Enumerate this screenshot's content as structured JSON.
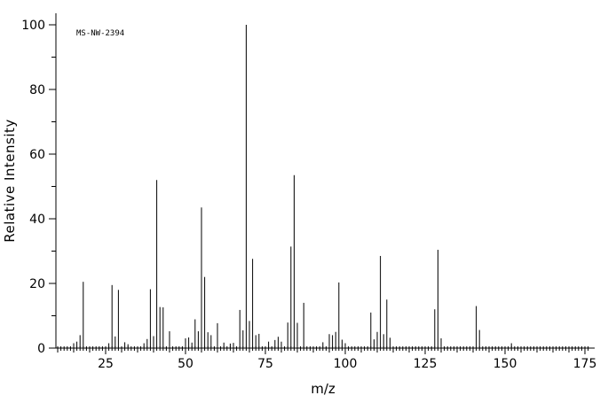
{
  "annotation": "MS-NW-2394",
  "chart_data": {
    "type": "bar",
    "title": "",
    "xlabel": "m/z",
    "ylabel": "Relative Intensity",
    "xlim": [
      9.4,
      176.5
    ],
    "ylim": [
      0,
      103.5
    ],
    "x_major_ticks": [
      25,
      50,
      75,
      100,
      125,
      150,
      175
    ],
    "x_medium_tick_step": 5,
    "x_minor_tick_step": 1,
    "y_major_ticks": [
      0,
      20,
      40,
      60,
      80,
      100
    ],
    "y_minor_tick_step": 10,
    "grid": false,
    "legend": "none",
    "bar_color": "#000000",
    "axis_color": "#000000",
    "background_color": "#ffffff",
    "peaks_format": "[m_over_z, relative_intensity_percent]",
    "peaks": [
      [
        15,
        1.5
      ],
      [
        16,
        2.0
      ],
      [
        17,
        4.0
      ],
      [
        18,
        20.5
      ],
      [
        26,
        1.5
      ],
      [
        27,
        19.5
      ],
      [
        28,
        3.6
      ],
      [
        29,
        18.0
      ],
      [
        31,
        1.8
      ],
      [
        32,
        1.2
      ],
      [
        37,
        1.5
      ],
      [
        38,
        2.8
      ],
      [
        39,
        18.2
      ],
      [
        40,
        3.7
      ],
      [
        41,
        52.0
      ],
      [
        42,
        12.7
      ],
      [
        43,
        12.6
      ],
      [
        45,
        5.2
      ],
      [
        50,
        3.0
      ],
      [
        51,
        3.3
      ],
      [
        52,
        1.7
      ],
      [
        53,
        8.9
      ],
      [
        54,
        5.2
      ],
      [
        55,
        43.5
      ],
      [
        56,
        22.0
      ],
      [
        57,
        4.9
      ],
      [
        58,
        4.0
      ],
      [
        60,
        7.7
      ],
      [
        62,
        1.7
      ],
      [
        64,
        1.4
      ],
      [
        65,
        1.6
      ],
      [
        67,
        11.8
      ],
      [
        68,
        5.5
      ],
      [
        69,
        100.0
      ],
      [
        70,
        8.4
      ],
      [
        71,
        27.6
      ],
      [
        72,
        4.0
      ],
      [
        73,
        4.4
      ],
      [
        76,
        2.0
      ],
      [
        78,
        2.5
      ],
      [
        79,
        3.5
      ],
      [
        80,
        2.0
      ],
      [
        82,
        7.9
      ],
      [
        83,
        31.4
      ],
      [
        84,
        53.5
      ],
      [
        85,
        7.8
      ],
      [
        87,
        14.0
      ],
      [
        93,
        1.8
      ],
      [
        95,
        4.3
      ],
      [
        96,
        4.0
      ],
      [
        97,
        5.0
      ],
      [
        98,
        20.3
      ],
      [
        99,
        2.6
      ],
      [
        100,
        1.5
      ],
      [
        108,
        11.0
      ],
      [
        109,
        2.7
      ],
      [
        110,
        5.0
      ],
      [
        111,
        28.5
      ],
      [
        112,
        4.3
      ],
      [
        113,
        15.0
      ],
      [
        114,
        3.2
      ],
      [
        128,
        12.0
      ],
      [
        129,
        30.4
      ],
      [
        130,
        3.0
      ],
      [
        141,
        13.0
      ],
      [
        142,
        5.6
      ],
      [
        152,
        1.5
      ]
    ]
  }
}
